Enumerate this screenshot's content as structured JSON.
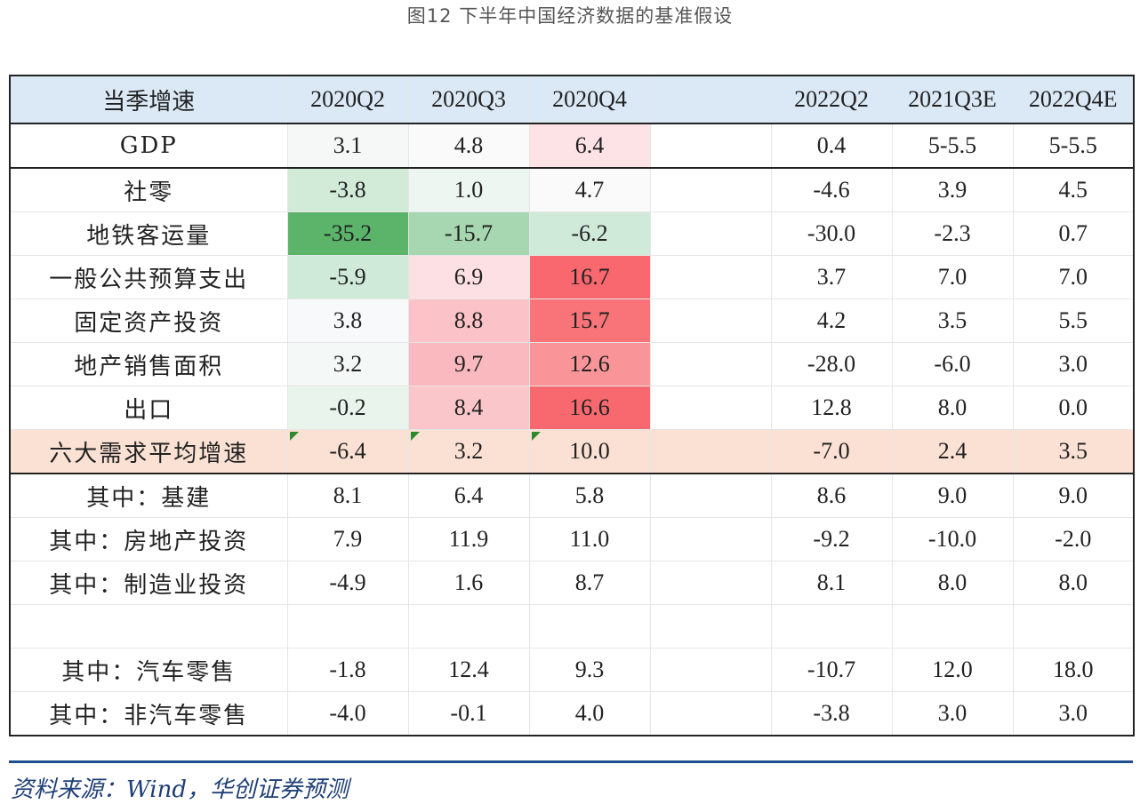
{
  "caption": "图12 下半年中国经济数据的基准假设",
  "table": {
    "headers": [
      "当季增速",
      "2020Q2",
      "2020Q3",
      "2020Q4",
      "",
      "2022Q2",
      "2021Q3E",
      "2022Q4E"
    ],
    "rows": [
      {
        "label": "GDP",
        "cells": [
          "3.1",
          "4.8",
          "6.4",
          "",
          "0.4",
          "5-5.5",
          "5-5.5"
        ],
        "colors": [
          "#f6f8f8",
          "#fafafa",
          "#fde3e6",
          "",
          "",
          "",
          ""
        ]
      },
      {
        "label": "社零",
        "cells": [
          "-3.8",
          "1.0",
          "4.7",
          "",
          "-4.6",
          "3.9",
          "4.5"
        ],
        "colors": [
          "#d2ebd8",
          "#eef6f1",
          "#fafafb",
          "",
          "",
          "",
          ""
        ]
      },
      {
        "label": "地铁客运量",
        "cells": [
          "-35.2",
          "-15.7",
          "-6.2",
          "",
          "-30.0",
          "-2.3",
          "0.7"
        ],
        "colors": [
          "#5cb46b",
          "#a7d7b0",
          "#d0eada",
          "",
          "",
          "",
          ""
        ]
      },
      {
        "label": "一般公共预算支出",
        "cells": [
          "-5.9",
          "6.9",
          "16.7",
          "",
          "3.7",
          "7.0",
          "7.0"
        ],
        "colors": [
          "#d0eada",
          "#fde0e4",
          "#f8686e",
          "",
          "",
          "",
          ""
        ]
      },
      {
        "label": "固定资产投资",
        "cells": [
          "3.8",
          "8.8",
          "15.7",
          "",
          "4.2",
          "3.5",
          "5.5"
        ],
        "colors": [
          "#f8f9fb",
          "#fbc3c7",
          "#f87479",
          "",
          "",
          "",
          ""
        ]
      },
      {
        "label": "地产销售面积",
        "cells": [
          "3.2",
          "9.7",
          "12.6",
          "",
          "-28.0",
          "-6.0",
          "3.0"
        ],
        "colors": [
          "#f4f8f7",
          "#fab9be",
          "#f99599",
          "",
          "",
          "",
          ""
        ]
      },
      {
        "label": "出口",
        "cells": [
          "-0.2",
          "8.4",
          "16.6",
          "",
          "12.8",
          "8.0",
          "0.0"
        ],
        "colors": [
          "#e8f4ec",
          "#fbc6ca",
          "#f8696f",
          "",
          "",
          "",
          ""
        ]
      },
      {
        "label": "六大需求平均增速",
        "cells": [
          "-6.4",
          "3.2",
          "10.0",
          "",
          "-7.0",
          "2.4",
          "3.5"
        ],
        "colors": [
          "",
          "",
          "",
          "",
          "",
          "",
          ""
        ]
      },
      {
        "label": "其中：基建",
        "cells": [
          "8.1",
          "6.4",
          "5.8",
          "",
          "8.6",
          "9.0",
          "9.0"
        ],
        "colors": [
          "",
          "",
          "",
          "",
          "",
          "",
          ""
        ]
      },
      {
        "label": "其中：房地产投资",
        "cells": [
          "7.9",
          "11.9",
          "11.0",
          "",
          "-9.2",
          "-10.0",
          "-2.0"
        ],
        "colors": [
          "",
          "",
          "",
          "",
          "",
          "",
          ""
        ]
      },
      {
        "label": "其中：制造业投资",
        "cells": [
          "-4.9",
          "1.6",
          "8.7",
          "",
          "8.1",
          "8.0",
          "8.0"
        ],
        "colors": [
          "",
          "",
          "",
          "",
          "",
          "",
          ""
        ]
      },
      {
        "label": "",
        "cells": [
          "",
          "",
          "",
          "",
          "",
          "",
          ""
        ],
        "colors": [
          "",
          "",
          "",
          "",
          "",
          "",
          ""
        ]
      },
      {
        "label": "其中：汽车零售",
        "cells": [
          "-1.8",
          "12.4",
          "9.3",
          "",
          "-10.7",
          "12.0",
          "18.0"
        ],
        "colors": [
          "",
          "",
          "",
          "",
          "",
          "",
          ""
        ]
      },
      {
        "label": "其中：非汽车零售",
        "cells": [
          "-4.0",
          "-0.1",
          "4.0",
          "",
          "-3.8",
          "3.0",
          "3.0"
        ],
        "colors": [
          "",
          "",
          "",
          "",
          "",
          "",
          ""
        ]
      }
    ]
  },
  "source": "资料来源：Wind，华创证券预测"
}
